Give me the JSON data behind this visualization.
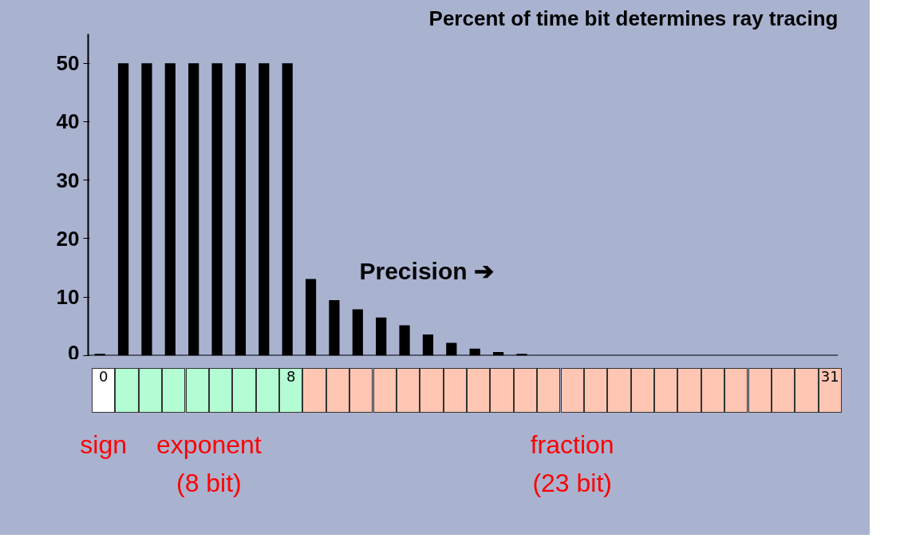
{
  "chart_data": {
    "type": "bar",
    "title": "Percent of time bit determines ray tracing",
    "categories": [
      "0",
      null,
      null,
      null,
      null,
      null,
      null,
      null,
      "8",
      null,
      null,
      null,
      null,
      null,
      null,
      null,
      null,
      null,
      null,
      null,
      null,
      null,
      null,
      null,
      null,
      null,
      null,
      null,
      null,
      null,
      null,
      "31"
    ],
    "values": [
      0.3,
      50,
      50,
      50,
      50,
      50,
      50,
      50,
      50,
      13.1,
      9.5,
      7.9,
      6.5,
      5.2,
      3.6,
      2.2,
      1.2,
      0.6,
      0.3,
      0,
      0,
      0,
      0,
      0,
      0,
      0,
      0,
      0,
      0,
      0,
      0,
      0
    ],
    "color": "#000000",
    "ylim": [
      0,
      55
    ],
    "yticks": [
      0,
      10,
      20,
      30,
      40,
      50
    ],
    "grid": false,
    "annotations": [
      "Precision ➔",
      "sign",
      "exponent\n(8 bit)",
      "fraction\n(23 bit)"
    ]
  }
}
